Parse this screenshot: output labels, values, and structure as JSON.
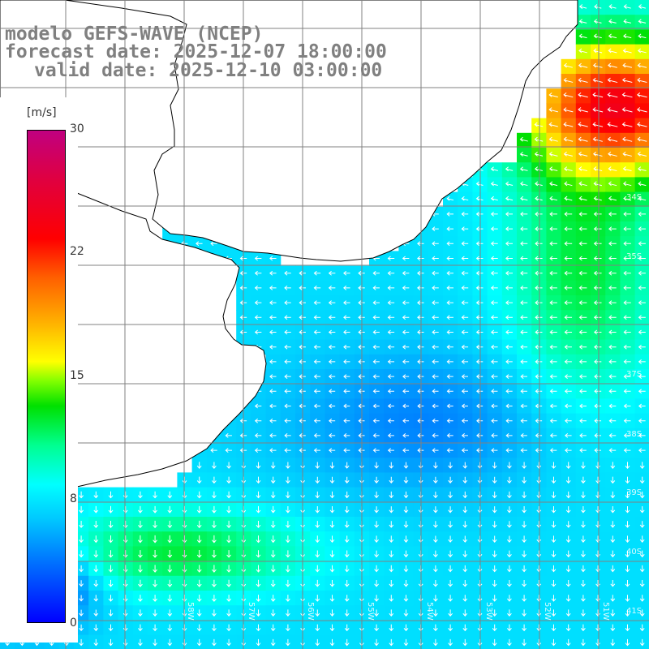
{
  "title": {
    "line1": "modelo GEFS-WAVE (NCEP)",
    "line2": "forecast date: 2025-12-07 18:00:00",
    "line3": "valid date: 2025-12-10 03:00:00"
  },
  "legend": {
    "unit": "[m/s]",
    "ticks": [
      "30",
      "22",
      "15",
      "8",
      "0"
    ],
    "tick_values": [
      30,
      22,
      15,
      8,
      0
    ],
    "max": 30,
    "min": 0
  },
  "lat_labels": [
    "34S",
    "35S",
    "37S",
    "38S",
    "39S",
    "40S",
    "41S"
  ],
  "lon_labels": [
    "58W",
    "57W",
    "56W",
    "55W",
    "54W",
    "53W",
    "52W",
    "51W"
  ],
  "colors": {
    "land": "#ffffff",
    "grid": "#808080",
    "coast": "#000000",
    "arrow": "#ffffff",
    "title": "#808080"
  },
  "wind_field": {
    "description_free": true,
    "regions": [
      {
        "zone": "northeast",
        "speed_ms": 24,
        "direction": "west"
      },
      {
        "zone": "central",
        "speed_ms": 6,
        "direction": "west"
      },
      {
        "zone": "south",
        "speed_ms": 11,
        "direction": "south"
      }
    ]
  }
}
